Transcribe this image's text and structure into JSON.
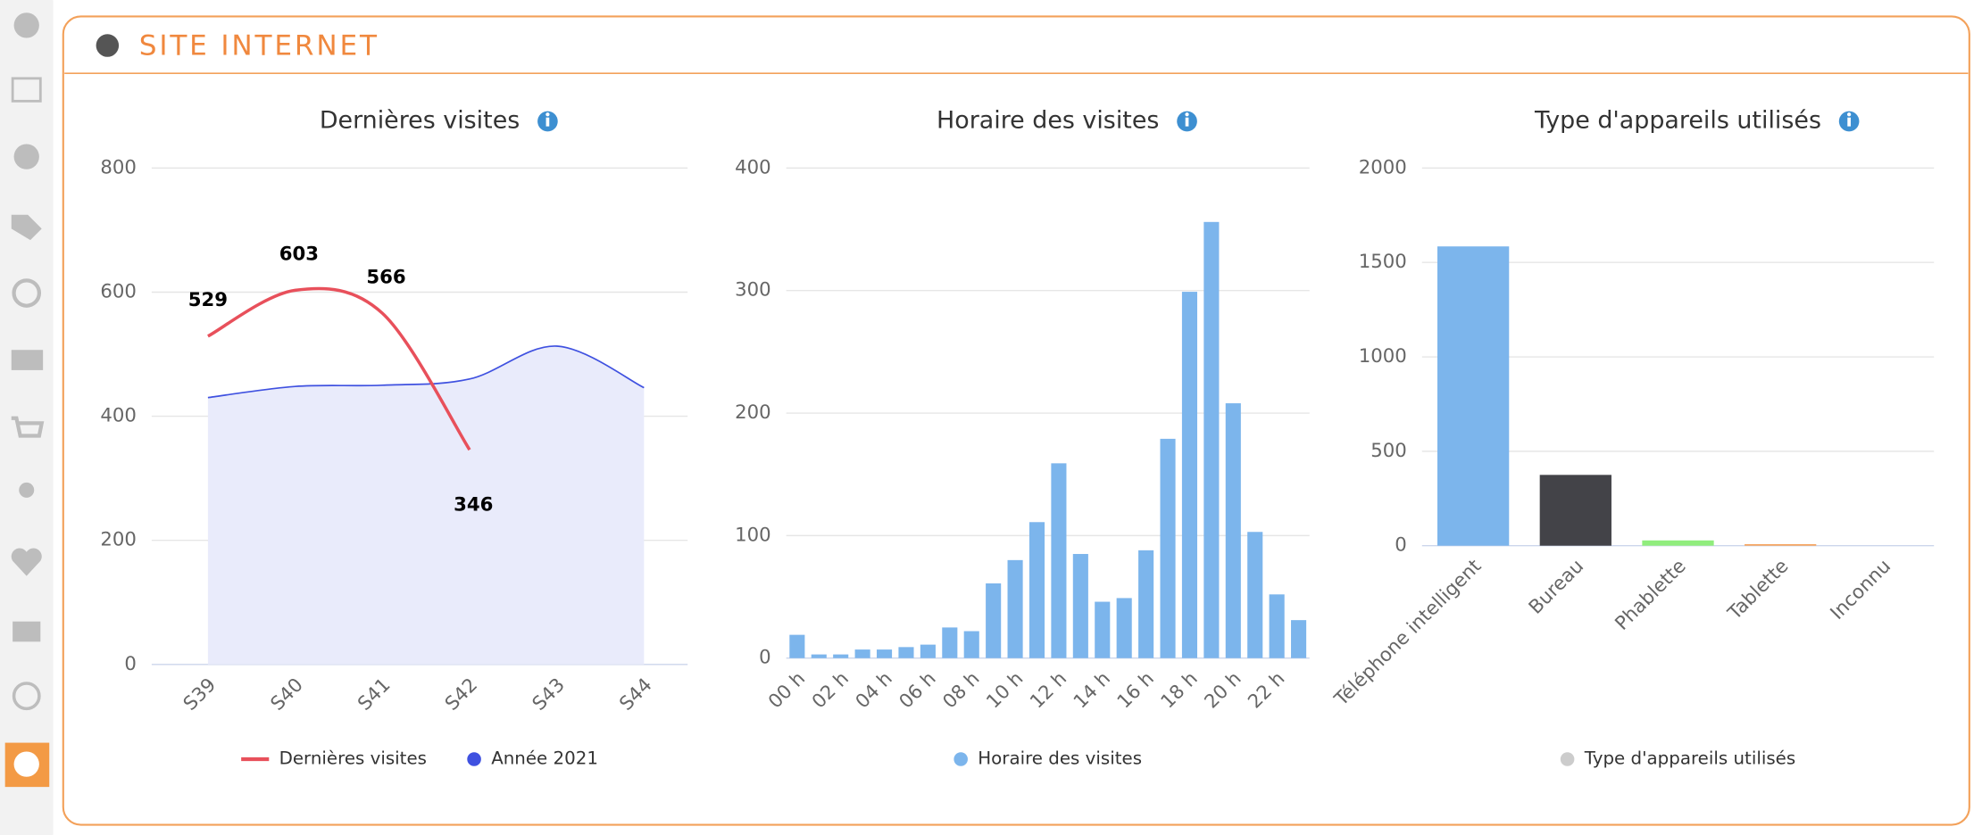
{
  "panel": {
    "title": "SITE INTERNET"
  },
  "chart_data": [
    {
      "type": "line",
      "title": "Dernières visites",
      "categories": [
        "S39",
        "S40",
        "S41",
        "S42",
        "S43",
        "S44"
      ],
      "series": [
        {
          "name": "Dernières visites",
          "color": "#e8505b",
          "data_labels": true,
          "values": [
            529,
            603,
            566,
            346,
            null,
            null
          ]
        },
        {
          "name": "Année 2021",
          "color": "#3f51e0",
          "area_color": "#e9ebfb",
          "values": [
            430,
            448,
            450,
            460,
            513,
            446
          ]
        }
      ],
      "ylim": [
        0,
        800
      ],
      "yticks": [
        0,
        200,
        400,
        600,
        800
      ],
      "grid": true
    },
    {
      "type": "bar",
      "title": "Horaire des visites",
      "categories": [
        "00 h",
        null,
        "02 h",
        null,
        "04 h",
        null,
        "06 h",
        null,
        "08 h",
        null,
        "10 h",
        null,
        "12 h",
        null,
        "14 h",
        null,
        "16 h",
        null,
        "18 h",
        null,
        "20 h",
        null,
        "22 h",
        null
      ],
      "series": [
        {
          "name": "Horaire des visites",
          "color": "#7cb5ec",
          "values": [
            19,
            3,
            3,
            7,
            7,
            9,
            11,
            25,
            22,
            61,
            80,
            111,
            159,
            85,
            46,
            49,
            88,
            179,
            299,
            356,
            208,
            103,
            52,
            31
          ]
        }
      ],
      "ylim": [
        0,
        400
      ],
      "yticks": [
        0,
        100,
        200,
        300,
        400
      ],
      "grid": true
    },
    {
      "type": "bar",
      "title": "Type d'appareils utilisés",
      "categories": [
        "Téléphone intelligent",
        "Bureau",
        "Phablette",
        "Tablette",
        "Inconnu"
      ],
      "series": [
        {
          "name": "Type d'appareils utilisés",
          "color": "#cccccc",
          "colors": [
            "#7cb5ec",
            "#434348",
            "#90ed7d",
            "#f7a35c",
            "#8085e9"
          ],
          "values": [
            1585,
            375,
            28,
            8,
            0
          ]
        }
      ],
      "ylim": [
        0,
        2000
      ],
      "yticks": [
        0,
        500,
        1000,
        1500,
        2000
      ],
      "grid": true
    }
  ]
}
